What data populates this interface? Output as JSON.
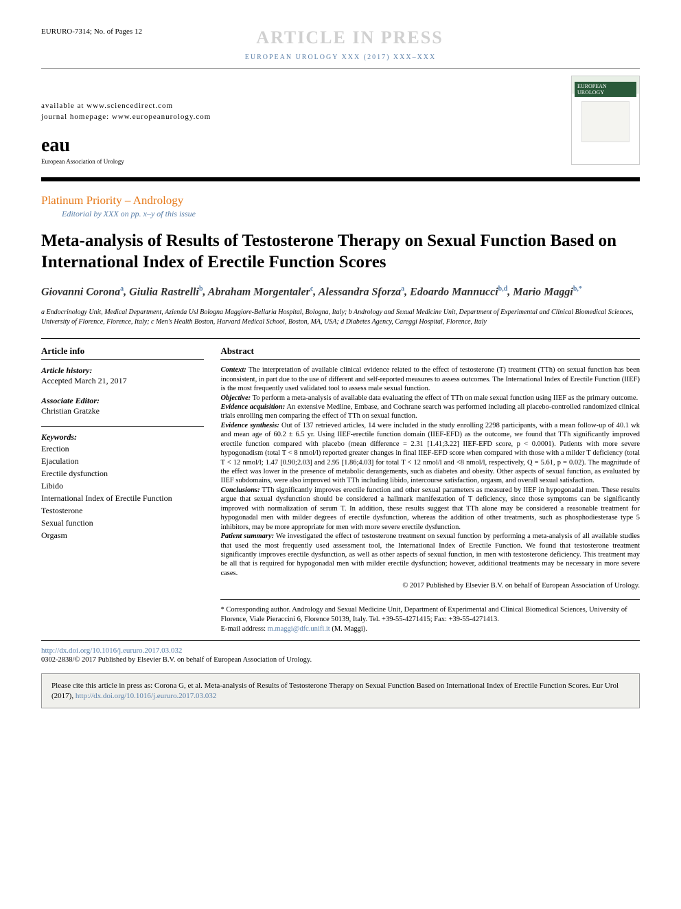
{
  "header": {
    "doc_id": "EURURO-7314; No. of Pages 12",
    "in_press": "ARTICLE IN PRESS",
    "journal_line": "EUROPEAN UROLOGY XXX (2017) XXX–XXX",
    "available_at": "available at www.sciencedirect.com",
    "homepage": "journal homepage: www.europeanurology.com",
    "logo_text": "eau",
    "logo_sub": "European Association of Urology",
    "cover_title": "EUROPEAN UROLOGY"
  },
  "section": {
    "label": "Platinum Priority – Andrology",
    "editorial": "Editorial by XXX on pp. x–y of this issue"
  },
  "title": "Meta-analysis of Results of Testosterone Therapy on Sexual Function Based on International Index of Erectile Function Scores",
  "authors_html": "Giovanni Corona<sup>a</sup>, Giulia Rastrelli<sup>b</sup>, Abraham Morgentaler<sup>c</sup>, Alessandra Sforza<sup>a</sup>, Edoardo Mannucci<sup>b,d</sup>, Mario Maggi<sup>b,*</sup>",
  "affiliations": "a Endocrinology Unit, Medical Department, Azienda Usl Bologna Maggiore-Bellaria Hospital, Bologna, Italy; b Andrology and Sexual Medicine Unit, Department of Experimental and Clinical Biomedical Sciences, University of Florence, Florence, Italy; c Men's Health Boston, Harvard Medical School, Boston, MA, USA; d Diabetes Agency, Careggi Hospital, Florence, Italy",
  "article_info": {
    "heading": "Article info",
    "history_label": "Article history:",
    "history_value": "Accepted March 21, 2017",
    "assoc_editor_label": "Associate Editor:",
    "assoc_editor_value": "Christian Gratzke",
    "keywords_label": "Keywords:",
    "keywords": [
      "Erection",
      "Ejaculation",
      "Erectile dysfunction",
      "Libido",
      "International Index of Erectile Function",
      "Testosterone",
      "Sexual function",
      "Orgasm"
    ]
  },
  "abstract": {
    "heading": "Abstract",
    "segments": [
      {
        "label": "Context:",
        "text": " The interpretation of available clinical evidence related to the effect of testosterone (T) treatment (TTh) on sexual function has been inconsistent, in part due to the use of different and self-reported measures to assess outcomes. The International Index of Erectile Function (IIEF) is the most frequently used validated tool to assess male sexual function."
      },
      {
        "label": "Objective:",
        "text": " To perform a meta-analysis of available data evaluating the effect of TTh on male sexual function using IIEF as the primary outcome."
      },
      {
        "label": "Evidence acquisition:",
        "text": " An extensive Medline, Embase, and Cochrane search was performed including all placebo-controlled randomized clinical trials enrolling men comparing the effect of TTh on sexual function."
      },
      {
        "label": "Evidence synthesis:",
        "text": " Out of 137 retrieved articles, 14 were included in the study enrolling 2298 participants, with a mean follow-up of 40.1 wk and mean age of 60.2 ± 6.5 yr. Using IIEF-erectile function domain (IIEF-EFD) as the outcome, we found that TTh significantly improved erectile function compared with placebo (mean difference = 2.31 [1.41;3.22] IIEF-EFD score, p < 0.0001). Patients with more severe hypogonadism (total T < 8 nmol/l) reported greater changes in final IIEF-EFD score when compared with those with a milder T deficiency (total T < 12 nmol/l; 1.47 [0.90;2.03] and 2.95 [1.86;4.03] for total T < 12 nmol/l and <8 nmol/l, respectively, Q = 5.61, p = 0.02). The magnitude of the effect was lower in the presence of metabolic derangements, such as diabetes and obesity. Other aspects of sexual function, as evaluated by IIEF subdomains, were also improved with TTh including libido, intercourse satisfaction, orgasm, and overall sexual satisfaction."
      },
      {
        "label": "Conclusions:",
        "text": " TTh significantly improves erectile function and other sexual parameters as measured by IIEF in hypogonadal men. These results argue that sexual dysfunction should be considered a hallmark manifestation of T deficiency, since those symptoms can be significantly improved with normalization of serum T. In addition, these results suggest that TTh alone may be considered a reasonable treatment for hypogonadal men with milder degrees of erectile dysfunction, whereas the addition of other treatments, such as phosphodiesterase type 5 inhibitors, may be more appropriate for men with more severe erectile dysfunction."
      },
      {
        "label": "Patient summary:",
        "text": " We investigated the effect of testosterone treatment on sexual function by performing a meta-analysis of all available studies that used the most frequently used assessment tool, the International Index of Erectile Function. We found that testosterone treatment significantly improves erectile dysfunction, as well as other aspects of sexual function, in men with testosterone deficiency. This treatment may be all that is required for hypogonadal men with milder erectile dysfunction; however, additional treatments may be necessary in more severe cases."
      }
    ],
    "copyright": "© 2017 Published by Elsevier B.V. on behalf of European Association of Urology."
  },
  "corresponding": {
    "text": "* Corresponding author. Andrology and Sexual Medicine Unit, Department of Experimental and Clinical Biomedical Sciences, University of Florence, Viale Pieraccini 6, Florence 50139, Italy. Tel. +39-55-4271415; Fax: +39-55-4271413.",
    "email_label": "E-mail address: ",
    "email": "m.maggi@dfc.unifi.it",
    "email_suffix": " (M. Maggi)."
  },
  "footer": {
    "doi": "http://dx.doi.org/10.1016/j.eururo.2017.03.032",
    "issn_line": "0302-2838/© 2017 Published by Elsevier B.V. on behalf of European Association of Urology."
  },
  "cite_box": {
    "prefix": "Please cite this article in press as: Corona G, et al. Meta-analysis of Results of Testosterone Therapy on Sexual Function Based on International Index of Erectile Function Scores. Eur Urol (2017), ",
    "link": "http://dx.doi.org/10.1016/j.eururo.2017.03.032"
  },
  "colors": {
    "orange": "#e67817",
    "blue": "#5a7fa8",
    "grey_band": "#d0d0d0",
    "box_bg": "#f0f0ec"
  },
  "fonts": {
    "title_pt": 25,
    "body_pt": 10.5,
    "authors_pt": 16
  }
}
